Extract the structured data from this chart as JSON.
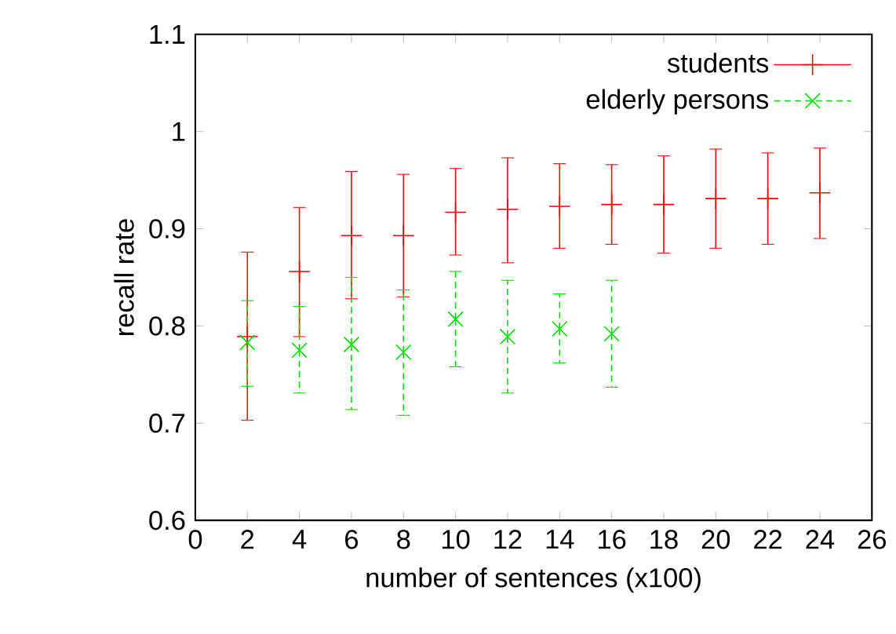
{
  "chart_data": {
    "type": "scatter",
    "xlabel": "number of sentences (x100)",
    "ylabel": "recall rate",
    "xlim": [
      0,
      26
    ],
    "xticks": [
      0,
      2,
      4,
      6,
      8,
      10,
      12,
      14,
      16,
      18,
      20,
      22,
      24,
      26
    ],
    "ylim": [
      0.6,
      1.1
    ],
    "yticks": [
      0.6,
      0.7,
      0.8,
      0.9,
      1,
      1.1
    ],
    "legend": "top right",
    "grid": false,
    "series": [
      {
        "name": "students",
        "color": "#ff0000",
        "marker": "cross",
        "line_style": "solid",
        "x": [
          2,
          4,
          6,
          8,
          10,
          12,
          14,
          16,
          18,
          20,
          22,
          24
        ],
        "values": [
          0.789,
          0.856,
          0.893,
          0.893,
          0.917,
          0.92,
          0.923,
          0.925,
          0.925,
          0.931,
          0.931,
          0.937
        ],
        "errors": [
          [
            0.703,
            0.876
          ],
          [
            0.789,
            0.922
          ],
          [
            0.828,
            0.959
          ],
          [
            0.83,
            0.956
          ],
          [
            0.873,
            0.962
          ],
          [
            0.865,
            0.973
          ],
          [
            0.88,
            0.967
          ],
          [
            0.884,
            0.966
          ],
          [
            0.875,
            0.975
          ],
          [
            0.88,
            0.982
          ],
          [
            0.884,
            0.978
          ],
          [
            0.89,
            0.983
          ]
        ]
      },
      {
        "name": "elderly persons",
        "color": "#00e000",
        "marker": "cross",
        "line_style": "dashed",
        "x": [
          2,
          4,
          6,
          8,
          10,
          12,
          14,
          16
        ],
        "values": [
          0.783,
          0.775,
          0.781,
          0.773,
          0.807,
          0.789,
          0.797,
          0.792
        ],
        "errors": [
          [
            0.738,
            0.826
          ],
          [
            0.731,
            0.82
          ],
          [
            0.714,
            0.85
          ],
          [
            0.708,
            0.837
          ],
          [
            0.758,
            0.856
          ],
          [
            0.731,
            0.847
          ],
          [
            0.762,
            0.833
          ],
          [
            0.737,
            0.847
          ]
        ]
      }
    ]
  }
}
